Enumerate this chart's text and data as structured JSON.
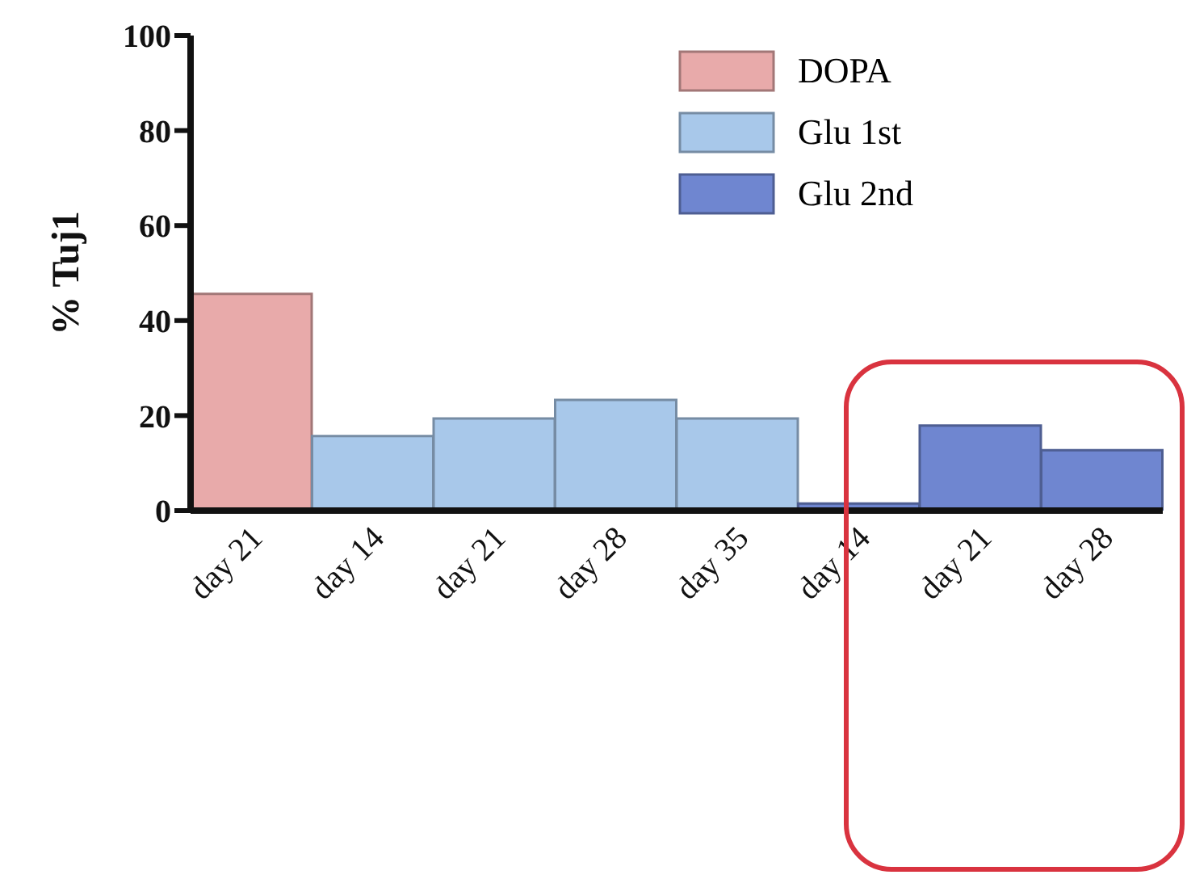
{
  "chart_data": {
    "type": "bar",
    "ylabel": "% Tuj1",
    "categories": [
      "day 21",
      "day 14",
      "day 21",
      "day 28",
      "day 35",
      "day 14",
      "day 21",
      "day 28"
    ],
    "series": [
      {
        "name": "DOPA",
        "color": "#e8aaaa",
        "values": [
          45.6,
          null,
          null,
          null,
          null,
          null,
          null,
          null
        ]
      },
      {
        "name": "Glu 1st",
        "color": "#a8c8ea",
        "values": [
          null,
          15.7,
          19.4,
          23.3,
          19.4,
          null,
          null,
          null
        ]
      },
      {
        "name": "Glu 2nd",
        "color": "#6f86d0",
        "values": [
          null,
          null,
          null,
          null,
          null,
          1.5,
          17.9,
          12.7
        ]
      }
    ],
    "ylim": [
      0,
      100
    ],
    "yticks": [
      0,
      20,
      40,
      60,
      80,
      100
    ],
    "grid": false,
    "legend": "top right"
  }
}
